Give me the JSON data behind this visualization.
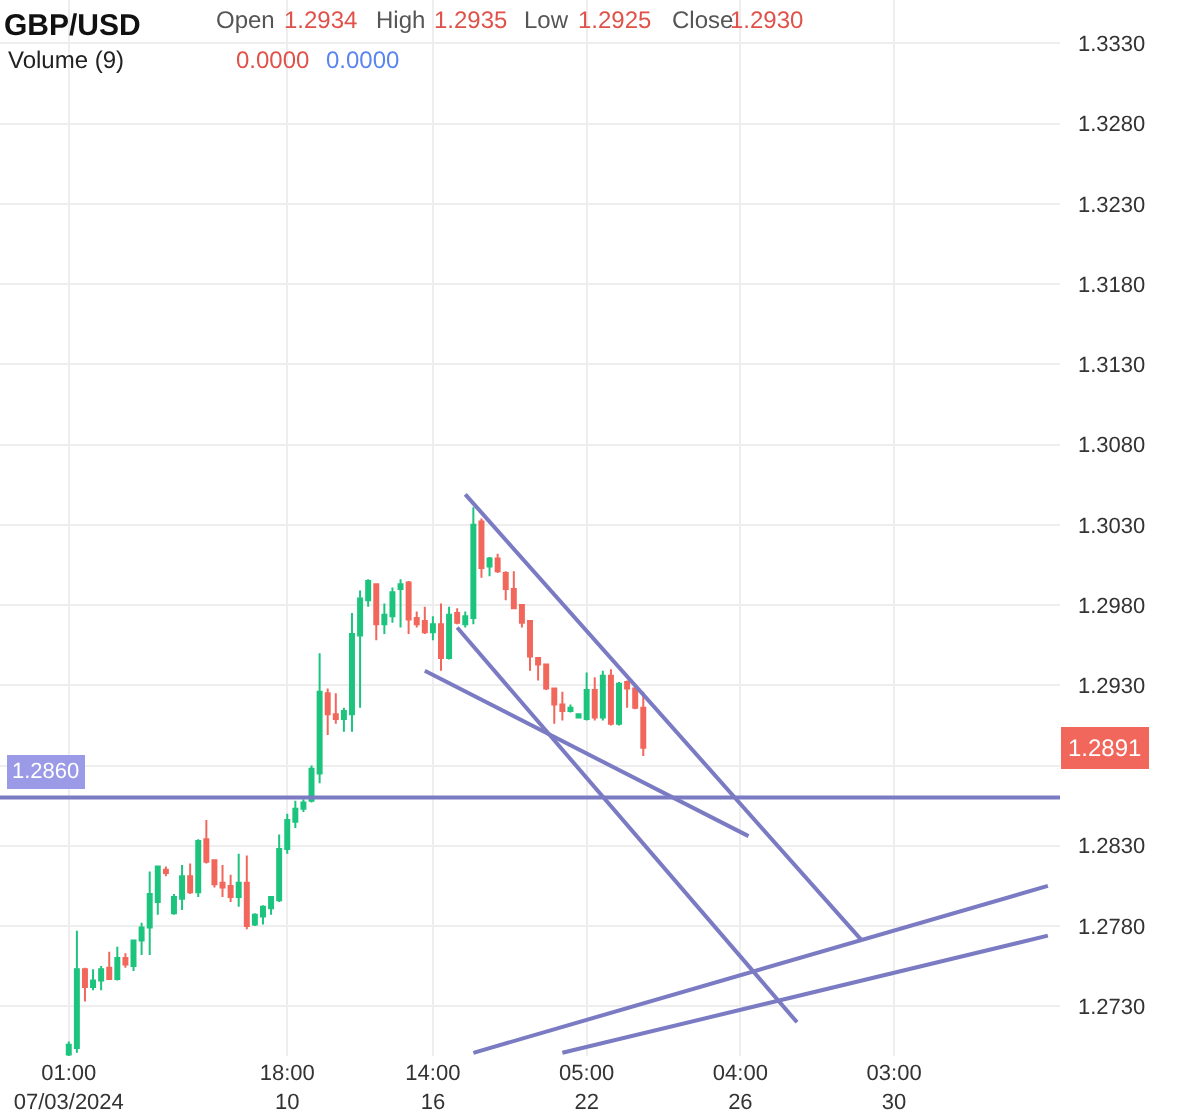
{
  "chart_data": {
    "type": "candlestick",
    "title": "GBP/USD",
    "annotations": [
      "Open",
      "1.2934",
      "High",
      "1.2935",
      "Low",
      "1.2925",
      "Close",
      "1.2930",
      "Volume (9)",
      "0.0000",
      "0.0000",
      {
        "text": "1.2891",
        "y": 1.2891
      }
    ],
    "categories": [
      "01:00\n07/03/2024",
      null,
      null,
      null,
      null,
      null,
      null,
      null,
      null,
      null,
      null,
      null,
      null,
      null,
      null,
      null,
      null,
      null,
      null,
      null,
      null,
      null,
      null,
      null,
      null,
      null,
      null,
      "18:00\n10",
      null,
      null,
      null,
      null,
      null,
      null,
      null,
      null,
      null,
      null,
      null,
      null,
      null,
      null,
      null,
      null,
      null,
      "14:00\n16",
      null,
      null,
      null,
      null,
      null,
      null,
      null,
      null,
      null,
      null,
      null,
      null,
      null,
      null,
      null,
      null,
      null,
      null,
      "05:00\n22",
      null,
      null,
      null,
      null,
      null,
      null,
      null,
      null,
      null,
      null,
      null,
      null,
      null,
      null,
      null,
      null,
      null,
      null,
      "04:00\n26",
      null,
      null,
      null,
      null,
      null,
      null,
      null,
      null,
      null,
      null,
      null,
      null,
      null,
      null,
      null,
      null,
      null,
      null,
      "03:00\n30",
      null,
      null,
      null,
      null,
      null,
      null,
      null,
      null,
      null,
      null,
      null,
      null,
      null,
      null,
      null,
      null,
      null,
      null,
      null,
      null
    ],
    "colors": [
      "#1cc47e",
      "#1cc47e",
      "#f2675c",
      "#1cc47e",
      "#1cc47e",
      "#f2675c",
      "#1cc47e",
      "#f2675c",
      "#1cc47e",
      "#1cc47e",
      "#1cc47e",
      "#1cc47e",
      "#f2675c",
      "#1cc47e",
      "#1cc47e",
      "#f2675c",
      "#1cc47e",
      "#f2675c",
      "#f2675c",
      "#f2675c",
      "#f2675c",
      "#1cc47e",
      "#f2675c",
      "#1cc47e",
      "#1cc47e",
      "#1cc47e",
      "#1cc47e",
      "#1cc47e",
      "#1cc47e",
      "#1cc47e",
      "#1cc47e",
      "#1cc47e",
      "#f2675c",
      "#f2675c",
      "#1cc47e",
      "#1cc47e",
      "#1cc47e",
      "#1cc47e",
      "#f2675c",
      "#1cc47e",
      "#1cc47e",
      "#1cc47e",
      "#f2675c",
      "#f2675c",
      "#f2675c",
      "#1cc47e",
      "#f2675c",
      "#1cc47e",
      "#f2675c",
      "#1cc47e",
      "#1cc47e",
      "#f2675c",
      "#1cc47e",
      "#f2675c",
      "#f2675c",
      "#f2675c",
      "#f2675c",
      "#f2675c",
      "#f2675c",
      "#f2675c",
      "#f2675c",
      "#f2675c",
      "#1cc47e",
      "#1cc47e",
      "#1cc47e",
      "#f2675c",
      "#1cc47e",
      "#f2675c",
      "#1cc47e",
      "#f2675c",
      "#f2675c",
      "#f2675c",
      null,
      null,
      null,
      null,
      null,
      null,
      null,
      null,
      null,
      null,
      null,
      null,
      null,
      null,
      null,
      null,
      null,
      null,
      null,
      null,
      null,
      null,
      null,
      null,
      null,
      null,
      null,
      null,
      null,
      null,
      null,
      null,
      null,
      null,
      null,
      null,
      null,
      null,
      null,
      null,
      null,
      null,
      null,
      null,
      null,
      null,
      null,
      null,
      null,
      null,
      null
    ],
    "ohlc": [
      [
        1.27,
        1.2708,
        1.2699,
        1.2706
      ],
      [
        1.2704,
        1.2777,
        1.2701,
        1.2753
      ],
      [
        1.2753,
        1.2754,
        1.2733,
        1.2742
      ],
      [
        1.2742,
        1.2753,
        1.274,
        1.2746
      ],
      [
        1.2746,
        1.2755,
        1.274,
        1.2753
      ],
      [
        1.2754,
        1.2764,
        1.2747,
        1.2747
      ],
      [
        1.2747,
        1.2767,
        1.2746,
        1.276
      ],
      [
        1.276,
        1.2763,
        1.2754,
        1.2756
      ],
      [
        1.2755,
        1.2771,
        1.2752,
        1.2771
      ],
      [
        1.2771,
        1.2782,
        1.2762,
        1.2779
      ],
      [
        1.2779,
        1.2814,
        1.2762,
        1.28
      ],
      [
        1.2795,
        1.2817,
        1.2787,
        1.2817
      ],
      [
        1.2815,
        1.2817,
        1.2811,
        1.2813
      ],
      [
        1.2788,
        1.28,
        1.2787,
        1.2798
      ],
      [
        1.2797,
        1.2818,
        1.279,
        1.2811
      ],
      [
        1.2811,
        1.2819,
        1.28,
        1.2801
      ],
      [
        1.2801,
        1.2834,
        1.2798,
        1.2833
      ],
      [
        1.2834,
        1.2846,
        1.2819,
        1.282
      ],
      [
        1.2821,
        1.2821,
        1.2804,
        1.2806
      ],
      [
        1.2807,
        1.2818,
        1.2798,
        1.2804
      ],
      [
        1.2805,
        1.2812,
        1.2795,
        1.2798
      ],
      [
        1.2798,
        1.2825,
        1.2792,
        1.2807
      ],
      [
        1.2807,
        1.2824,
        1.2778,
        1.278
      ],
      [
        1.2781,
        1.2788,
        1.278,
        1.2787
      ],
      [
        1.2786,
        1.2793,
        1.2781,
        1.2792
      ],
      [
        1.2791,
        1.2798,
        1.2787,
        1.2798
      ],
      [
        1.2796,
        1.2837,
        1.2795,
        1.2828
      ],
      [
        1.2828,
        1.285,
        1.2825,
        1.2846
      ],
      [
        1.2845,
        1.2858,
        1.2841,
        1.2853
      ],
      [
        1.2853,
        1.2859,
        1.2851,
        1.2857
      ],
      [
        1.2858,
        1.288,
        1.2857,
        1.2878
      ],
      [
        1.2875,
        1.295,
        1.2869,
        1.2926
      ],
      [
        1.2925,
        1.2928,
        1.2899,
        1.2912
      ],
      [
        1.2912,
        1.2925,
        1.2906,
        1.2909
      ],
      [
        1.2909,
        1.2916,
        1.2901,
        1.2914
      ],
      [
        1.2912,
        1.2975,
        1.2901,
        1.2962
      ],
      [
        1.2961,
        1.2989,
        1.2916,
        1.2984
      ],
      [
        1.2983,
        1.2996,
        1.2979,
        1.2995
      ],
      [
        1.2993,
        1.2993,
        1.2958,
        1.2968
      ],
      [
        1.2968,
        1.2981,
        1.2962,
        1.2974
      ],
      [
        1.2973,
        1.2991,
        1.2969,
        1.2988
      ],
      [
        1.299,
        1.2996,
        1.2966,
        1.2993
      ],
      [
        1.2994,
        1.2995,
        1.2962,
        1.2971
      ],
      [
        1.2972,
        1.2976,
        1.2966,
        1.2968
      ],
      [
        1.297,
        1.2979,
        1.2962,
        1.2963
      ],
      [
        1.2963,
        1.2973,
        1.2958,
        1.2968
      ],
      [
        1.2968,
        1.2981,
        1.2939,
        1.2947
      ],
      [
        1.2947,
        1.2979,
        1.2946,
        1.2974
      ],
      [
        1.2975,
        1.2978,
        1.2968,
        1.2969
      ],
      [
        1.2968,
        1.2976,
        1.2966,
        1.2973
      ],
      [
        1.2972,
        1.3041,
        1.2968,
        1.303
      ],
      [
        1.3032,
        1.3034,
        1.2997,
        1.3003
      ],
      [
        1.3004,
        1.301,
        1.2998,
        1.3009
      ],
      [
        1.3009,
        1.3012,
        1.3,
        1.3001
      ],
      [
        1.3,
        1.3001,
        1.2983,
        1.299
      ],
      [
        1.299,
        1.3001,
        1.2978,
        1.2978
      ],
      [
        1.298,
        1.298,
        1.2966,
        1.2969
      ],
      [
        1.297,
        1.297,
        1.2939,
        1.2948
      ],
      [
        1.2947,
        1.2947,
        1.2933,
        1.2943
      ],
      [
        1.2943,
        1.2943,
        1.2927,
        1.2928
      ],
      [
        1.2928,
        1.2928,
        1.2906,
        1.2918
      ],
      [
        1.2918,
        1.2926,
        1.2908,
        1.2914
      ],
      [
        1.2914,
        1.2918,
        1.2913,
        1.2916
      ],
      [
        1.291,
        1.2912,
        1.291,
        1.2912
      ],
      [
        1.2909,
        1.2938,
        1.2908,
        1.2927
      ],
      [
        1.2927,
        1.2935,
        1.2908,
        1.291
      ],
      [
        1.291,
        1.2939,
        1.2908,
        1.2936
      ],
      [
        1.2936,
        1.294,
        1.2905,
        1.2906
      ],
      [
        1.2906,
        1.2932,
        1.2905,
        1.2931
      ],
      [
        1.2932,
        1.2933,
        1.2916,
        1.2928
      ],
      [
        1.2928,
        1.2929,
        1.2915,
        1.2916
      ],
      [
        1.2916,
        1.2926,
        1.2886,
        1.2891
      ],
      null,
      null,
      null,
      null,
      null,
      null,
      null,
      null,
      null,
      null,
      null,
      null,
      null,
      null,
      null,
      null,
      null,
      null,
      null,
      null,
      null,
      null,
      null,
      null,
      null,
      null,
      null,
      null,
      null,
      null,
      null,
      null,
      null,
      null,
      null,
      null,
      null,
      null,
      null,
      null,
      null,
      null,
      null,
      null,
      null,
      null,
      null,
      null,
      null,
      null,
      null
    ],
    "series": [
      {
        "type": "line",
        "color": "#7b7bc4",
        "values": [
          null,
          null,
          null,
          null,
          null,
          null,
          null,
          null,
          null,
          null,
          null,
          null,
          null,
          null,
          null,
          null,
          null,
          null,
          null,
          null,
          null,
          null,
          null,
          null,
          null,
          null,
          null,
          null,
          null,
          null,
          null,
          null,
          null,
          null,
          null,
          null,
          null,
          null,
          null,
          null,
          null,
          null,
          null,
          null,
          null,
          null,
          null,
          null,
          null,
          1.3049,
          null,
          null,
          null,
          null,
          null,
          null,
          null,
          null,
          null,
          null,
          null,
          null,
          null,
          null,
          null,
          null,
          null,
          null,
          null,
          null,
          null,
          null,
          null,
          null,
          null,
          null,
          null,
          null,
          null,
          null,
          null,
          null,
          null,
          null,
          null,
          null,
          null,
          null,
          null,
          null,
          null,
          null,
          null,
          null,
          null,
          null,
          null,
          null,
          1.2771,
          null,
          null,
          null,
          null,
          null,
          null,
          null,
          null,
          null,
          null,
          null,
          null,
          null,
          null,
          null,
          null,
          null,
          null,
          null,
          null,
          null,
          null,
          null,
          null
        ]
      },
      {
        "type": "line",
        "color": "#7b7bc4",
        "values": [
          null,
          null,
          null,
          null,
          null,
          null,
          null,
          null,
          null,
          null,
          null,
          null,
          null,
          null,
          null,
          null,
          null,
          null,
          null,
          null,
          null,
          null,
          null,
          null,
          null,
          null,
          null,
          null,
          null,
          null,
          null,
          null,
          null,
          null,
          null,
          null,
          null,
          null,
          null,
          null,
          null,
          null,
          null,
          null,
          null,
          null,
          null,
          null,
          1.2966,
          null,
          null,
          null,
          null,
          null,
          null,
          null,
          null,
          null,
          null,
          null,
          null,
          null,
          null,
          null,
          null,
          null,
          null,
          null,
          null,
          null,
          null,
          null,
          null,
          null,
          null,
          null,
          null,
          null,
          null,
          null,
          null,
          null,
          null,
          null,
          null,
          null,
          null,
          null,
          null,
          null,
          1.272,
          null,
          null,
          null,
          null,
          null,
          null,
          null,
          null,
          null,
          null,
          null,
          null,
          null,
          null,
          null,
          null,
          null,
          null,
          null,
          null,
          null,
          null,
          null,
          null,
          null,
          null,
          null,
          null,
          null,
          null,
          null,
          null
        ]
      },
      {
        "type": "line",
        "color": "#7b7bc4",
        "values": [
          null,
          null,
          null,
          null,
          null,
          null,
          null,
          null,
          null,
          null,
          null,
          null,
          null,
          null,
          null,
          null,
          null,
          null,
          null,
          null,
          null,
          null,
          null,
          null,
          null,
          null,
          null,
          null,
          null,
          null,
          null,
          null,
          null,
          null,
          null,
          null,
          null,
          null,
          null,
          null,
          null,
          null,
          null,
          null,
          1.2939,
          null,
          null,
          null,
          null,
          null,
          null,
          null,
          null,
          null,
          null,
          null,
          null,
          null,
          null,
          null,
          null,
          null,
          null,
          null,
          null,
          null,
          null,
          null,
          null,
          null,
          null,
          null,
          null,
          null,
          null,
          null,
          null,
          null,
          null,
          null,
          null,
          null,
          null,
          null,
          1.2836,
          null,
          null,
          null,
          null,
          null,
          null,
          null,
          null,
          null,
          null,
          null,
          null,
          null,
          null,
          null,
          null,
          null,
          null,
          null,
          null,
          null,
          null,
          null,
          null,
          null,
          null,
          null,
          null,
          null,
          null,
          null,
          null,
          null,
          null,
          null,
          null,
          null,
          null
        ]
      },
      {
        "type": "line",
        "color": "#7b7bc4",
        "values": [
          null,
          null,
          null,
          null,
          null,
          null,
          null,
          null,
          null,
          null,
          null,
          null,
          null,
          null,
          null,
          null,
          null,
          null,
          null,
          null,
          null,
          null,
          null,
          null,
          null,
          null,
          null,
          null,
          null,
          null,
          null,
          null,
          null,
          null,
          null,
          null,
          null,
          null,
          null,
          null,
          null,
          null,
          null,
          null,
          null,
          null,
          null,
          null,
          null,
          null,
          1.2701,
          null,
          null,
          null,
          null,
          null,
          null,
          null,
          null,
          null,
          null,
          null,
          null,
          null,
          null,
          null,
          null,
          null,
          null,
          null,
          null,
          null,
          null,
          null,
          null,
          null,
          null,
          null,
          null,
          null,
          null,
          null,
          null,
          null,
          null,
          null,
          null,
          null,
          null,
          null,
          null,
          null,
          null,
          null,
          null,
          null,
          null,
          null,
          null,
          null,
          null,
          null,
          null,
          null,
          null,
          null,
          null,
          null,
          null,
          null,
          null,
          null,
          null,
          null,
          null,
          null,
          null,
          null,
          null,
          null,
          null,
          1.2805,
          null
        ]
      },
      {
        "type": "line",
        "color": "#7b7bc4",
        "values": [
          null,
          null,
          null,
          null,
          null,
          null,
          null,
          null,
          null,
          null,
          null,
          null,
          null,
          null,
          null,
          null,
          null,
          null,
          null,
          null,
          null,
          null,
          null,
          null,
          null,
          null,
          null,
          null,
          null,
          null,
          null,
          null,
          null,
          null,
          null,
          null,
          null,
          null,
          null,
          null,
          null,
          null,
          null,
          null,
          null,
          null,
          null,
          null,
          null,
          null,
          null,
          null,
          null,
          null,
          null,
          null,
          null,
          null,
          null,
          null,
          null,
          1.2701,
          null,
          null,
          null,
          null,
          null,
          null,
          null,
          null,
          null,
          null,
          null,
          null,
          null,
          null,
          null,
          null,
          null,
          null,
          null,
          null,
          null,
          null,
          null,
          null,
          null,
          null,
          null,
          null,
          null,
          null,
          null,
          null,
          null,
          null,
          null,
          null,
          null,
          null,
          null,
          null,
          null,
          null,
          null,
          null,
          null,
          null,
          null,
          null,
          null,
          null,
          null,
          null,
          null,
          null,
          null,
          null,
          null,
          null,
          null,
          1.2774,
          null
        ]
      }
    ],
    "ref_lines": [
      {
        "axis": "y",
        "value": 1.286,
        "label": "1.2860",
        "color": "#7b7bc4"
      }
    ],
    "ylim": [
      1.2699,
      1.3357
    ],
    "yticks": [
      {
        "value": 1.273,
        "label": "1.2730"
      },
      {
        "value": 1.278,
        "label": "1.2780"
      },
      {
        "value": 1.283,
        "label": "1.2830"
      },
      {
        "value": 1.288,
        "label": null
      },
      {
        "value": 1.293,
        "label": "1.2930"
      },
      {
        "value": 1.298,
        "label": "1.2980"
      },
      {
        "value": 1.303,
        "label": "1.3030"
      },
      {
        "value": 1.308,
        "label": "1.3080"
      },
      {
        "value": 1.313,
        "label": "1.3130"
      },
      {
        "value": 1.318,
        "label": "1.3180"
      },
      {
        "value": 1.323,
        "label": "1.3230"
      },
      {
        "value": 1.328,
        "label": "1.3280"
      },
      {
        "value": 1.333,
        "label": "1.3330"
      }
    ],
    "grid": true
  }
}
